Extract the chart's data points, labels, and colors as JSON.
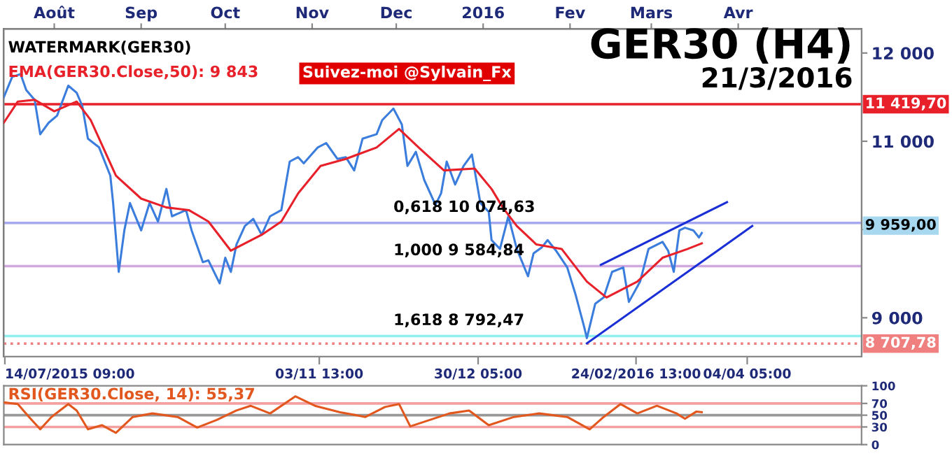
{
  "chart_data": [
    {
      "type": "line",
      "title": "GER30 (H4)",
      "subtitle": "21/3/2016",
      "xlim": [
        "2015-07-14",
        "2016-05-15"
      ],
      "ylim": [
        8560,
        12270
      ],
      "xticks": [
        {
          "value": "2015-07-14T09:00",
          "label": "14/07/2015 09:00"
        },
        {
          "value": "2015-11-03T13:00",
          "label": "03/11 13:00"
        },
        {
          "value": "2015-12-30T05:00",
          "label": "30/12 05:00"
        },
        {
          "value": "2016-02-24T13:00",
          "label": "24/02/2016 13:00"
        },
        {
          "value": "2016-04-04T05:00",
          "label": "04/04 05:00"
        }
      ],
      "x2lim": [
        "2015-07-14",
        "2016-05-15"
      ],
      "x2ticks": [
        {
          "value": "2015-08-01",
          "label": "Août"
        },
        {
          "value": "2015-09-01",
          "label": "Sep"
        },
        {
          "value": "2015-10-01",
          "label": "Oct"
        },
        {
          "value": "2015-11-01",
          "label": "Nov"
        },
        {
          "value": "2015-12-01",
          "label": "Dec"
        },
        {
          "value": "2016-01-01",
          "label": "2016"
        },
        {
          "value": "2016-02-01",
          "label": "Fev"
        },
        {
          "value": "2016-03-01",
          "label": "Mars"
        },
        {
          "value": "2016-04-01",
          "label": "Avr"
        }
      ],
      "yticks": [
        {
          "value": 12000,
          "label": "12 000"
        },
        {
          "value": 11000,
          "label": "11 000"
        },
        {
          "value": 10000,
          "label": null
        },
        {
          "value": 9000,
          "label": "9 000"
        }
      ],
      "grid": false,
      "legend": false,
      "series": [
        {
          "color": "#3b7ddd",
          "x": [
            "2015-07-14",
            "2015-07-17",
            "2015-07-20",
            "2015-07-22",
            "2015-07-25",
            "2015-07-27",
            "2015-07-30",
            "2015-08-02",
            "2015-08-06",
            "2015-08-09",
            "2015-08-11",
            "2015-08-13",
            "2015-08-17",
            "2015-08-21",
            "2015-08-22",
            "2015-08-24",
            "2015-08-26",
            "2015-08-28",
            "2015-09-01",
            "2015-09-04",
            "2015-09-07",
            "2015-09-10",
            "2015-09-12",
            "2015-09-17",
            "2015-09-19",
            "2015-09-23",
            "2015-09-25",
            "2015-09-29",
            "2015-10-01",
            "2015-10-03",
            "2015-10-05",
            "2015-10-08",
            "2015-10-11",
            "2015-10-14",
            "2015-10-17",
            "2015-10-21",
            "2015-10-24",
            "2015-10-27",
            "2015-10-29",
            "2015-11-03",
            "2015-11-06",
            "2015-11-10",
            "2015-11-13",
            "2015-11-16",
            "2015-11-19",
            "2015-11-24",
            "2015-11-26",
            "2015-11-30",
            "2015-12-03",
            "2015-12-05",
            "2015-12-08",
            "2015-12-11",
            "2015-12-15",
            "2015-12-17",
            "2015-12-19",
            "2015-12-22",
            "2015-12-25",
            "2015-12-28",
            "2015-12-31",
            "2016-01-03",
            "2016-01-04",
            "2016-01-07",
            "2016-01-10",
            "2016-01-13",
            "2016-01-17",
            "2016-01-19",
            "2016-01-22",
            "2016-01-24",
            "2016-01-27",
            "2016-01-31",
            "2016-02-03",
            "2016-02-06",
            "2016-02-07",
            "2016-02-10",
            "2016-02-13",
            "2016-02-16",
            "2016-02-20",
            "2016-02-22",
            "2016-02-26",
            "2016-02-29",
            "2016-03-05",
            "2016-03-07",
            "2016-03-09",
            "2016-03-11",
            "2016-03-13",
            "2016-03-16",
            "2016-03-18",
            "2016-03-19"
          ],
          "values": [
            11500,
            11730,
            11760,
            11580,
            11470,
            11080,
            11210,
            11290,
            11630,
            11550,
            11400,
            11030,
            10930,
            10610,
            10300,
            9520,
            9990,
            10300,
            9990,
            10300,
            10090,
            10460,
            10150,
            10220,
            9990,
            9630,
            9650,
            9390,
            9680,
            9520,
            9830,
            10040,
            10120,
            9940,
            10150,
            10220,
            10770,
            10820,
            10750,
            10930,
            10980,
            10800,
            10820,
            10670,
            11030,
            11080,
            11240,
            11370,
            11190,
            10720,
            10880,
            10560,
            10280,
            10410,
            10770,
            10510,
            10720,
            10850,
            10300,
            10200,
            9880,
            9780,
            10150,
            9780,
            9470,
            9730,
            9800,
            9880,
            9760,
            9570,
            9260,
            8900,
            8770,
            9160,
            9230,
            9520,
            9570,
            9180,
            9410,
            9780,
            9860,
            9760,
            9520,
            9990,
            10020,
            9990,
            9910,
            9960
          ]
        },
        {
          "name": "EMA(GER30.Close,50): 9 843",
          "color": "#e8202a",
          "x": [
            "2015-07-14",
            "2015-07-19",
            "2015-07-25",
            "2015-08-01",
            "2015-08-09",
            "2015-08-14",
            "2015-08-23",
            "2015-09-01",
            "2015-09-10",
            "2015-09-18",
            "2015-09-25",
            "2015-10-03",
            "2015-10-14",
            "2015-10-21",
            "2015-10-27",
            "2015-11-04",
            "2015-11-13",
            "2015-11-24",
            "2015-12-02",
            "2015-12-09",
            "2015-12-18",
            "2015-12-29",
            "2016-01-04",
            "2016-01-08",
            "2016-01-13",
            "2016-01-20",
            "2016-01-29",
            "2016-02-07",
            "2016-02-14",
            "2016-02-25",
            "2016-03-05",
            "2016-03-14",
            "2016-03-19"
          ],
          "values": [
            11210,
            11450,
            11470,
            11340,
            11450,
            11240,
            10610,
            10350,
            10250,
            10220,
            10090,
            9760,
            9940,
            10090,
            10410,
            10720,
            10800,
            10930,
            11140,
            10930,
            10670,
            10690,
            10460,
            10250,
            10040,
            9830,
            9780,
            9410,
            9230,
            9410,
            9680,
            9780,
            9843
          ]
        },
        {
          "color": "#1a2fd6",
          "x": [
            "2016-02-12",
            "2016-03-28"
          ],
          "values": [
            9600,
            10310
          ]
        },
        {
          "color": "#1a2fd6",
          "x": [
            "2016-02-07",
            "2016-04-06"
          ],
          "values": [
            8710,
            10040
          ]
        }
      ],
      "ref_lines": [
        {
          "axis": "y",
          "value": 11419.7,
          "label": "11 419,70",
          "color": "#e8202a"
        },
        {
          "axis": "y",
          "value": 8707.78,
          "label": "8 707,78",
          "color": "#f08080",
          "line_style": "dotted"
        },
        {
          "axis": "y",
          "value": 10074.63,
          "color": "#a8a8f0"
        },
        {
          "axis": "y",
          "value": 9584.84,
          "color": "#d0a8e0"
        },
        {
          "axis": "y",
          "value": 8792.47,
          "color": "#90f0f0"
        }
      ],
      "annotations": [
        "WATERMARK(GER30)",
        "Suivez-moi @Sylvain_Fx",
        "9 959,00",
        {
          "text": "0,618 10 074,63",
          "x": "2015-11-30",
          "y": 10074.63
        },
        {
          "text": "1,000 9 584,84",
          "x": "2015-11-30",
          "y": 9584.84
        },
        {
          "text": "1,618 8 792,47",
          "x": "2015-11-30",
          "y": 8792.47
        }
      ]
    },
    {
      "type": "line",
      "xlim": [
        "2015-07-14",
        "2016-05-15"
      ],
      "ylim": [
        0,
        100
      ],
      "yticks": [
        0,
        30,
        50,
        70,
        100
      ],
      "tick_labels": "y",
      "grid": false,
      "legend": false,
      "series": [
        {
          "name": "RSI(GER30.Close, 14): 55,37",
          "color": "#e2571e",
          "x": [
            "2015-07-14",
            "2015-07-19",
            "2015-07-23",
            "2015-07-27",
            "2015-07-31",
            "2015-08-06",
            "2015-08-09",
            "2015-08-13",
            "2015-08-18",
            "2015-08-23",
            "2015-08-29",
            "2015-09-05",
            "2015-09-14",
            "2015-09-21",
            "2015-09-28",
            "2015-10-05",
            "2015-10-10",
            "2015-10-17",
            "2015-10-26",
            "2015-11-02",
            "2015-11-11",
            "2015-11-20",
            "2015-11-27",
            "2015-12-02",
            "2015-12-06",
            "2015-12-13",
            "2015-12-20",
            "2015-12-27",
            "2016-01-03",
            "2016-01-12",
            "2016-01-21",
            "2016-01-31",
            "2016-02-08",
            "2016-02-13",
            "2016-02-19",
            "2016-02-25",
            "2016-03-03",
            "2016-03-10",
            "2016-03-13",
            "2016-03-17",
            "2016-03-19"
          ],
          "values": [
            72,
            69,
            47,
            26,
            47,
            69,
            58,
            26,
            33,
            20,
            47,
            53,
            47,
            29,
            42,
            58,
            66,
            53,
            82,
            66,
            55,
            47,
            64,
            69,
            31,
            42,
            53,
            58,
            33,
            47,
            53,
            47,
            26,
            47,
            69,
            53,
            66,
            53,
            44,
            56,
            55
          ]
        }
      ],
      "ref_lines": [
        {
          "axis": "y",
          "value": 50,
          "color": "#999999"
        },
        {
          "axis": "y",
          "value": 70,
          "color": "#f4a0a0"
        },
        {
          "axis": "y",
          "value": 30,
          "color": "#f4a0a0"
        }
      ]
    }
  ]
}
